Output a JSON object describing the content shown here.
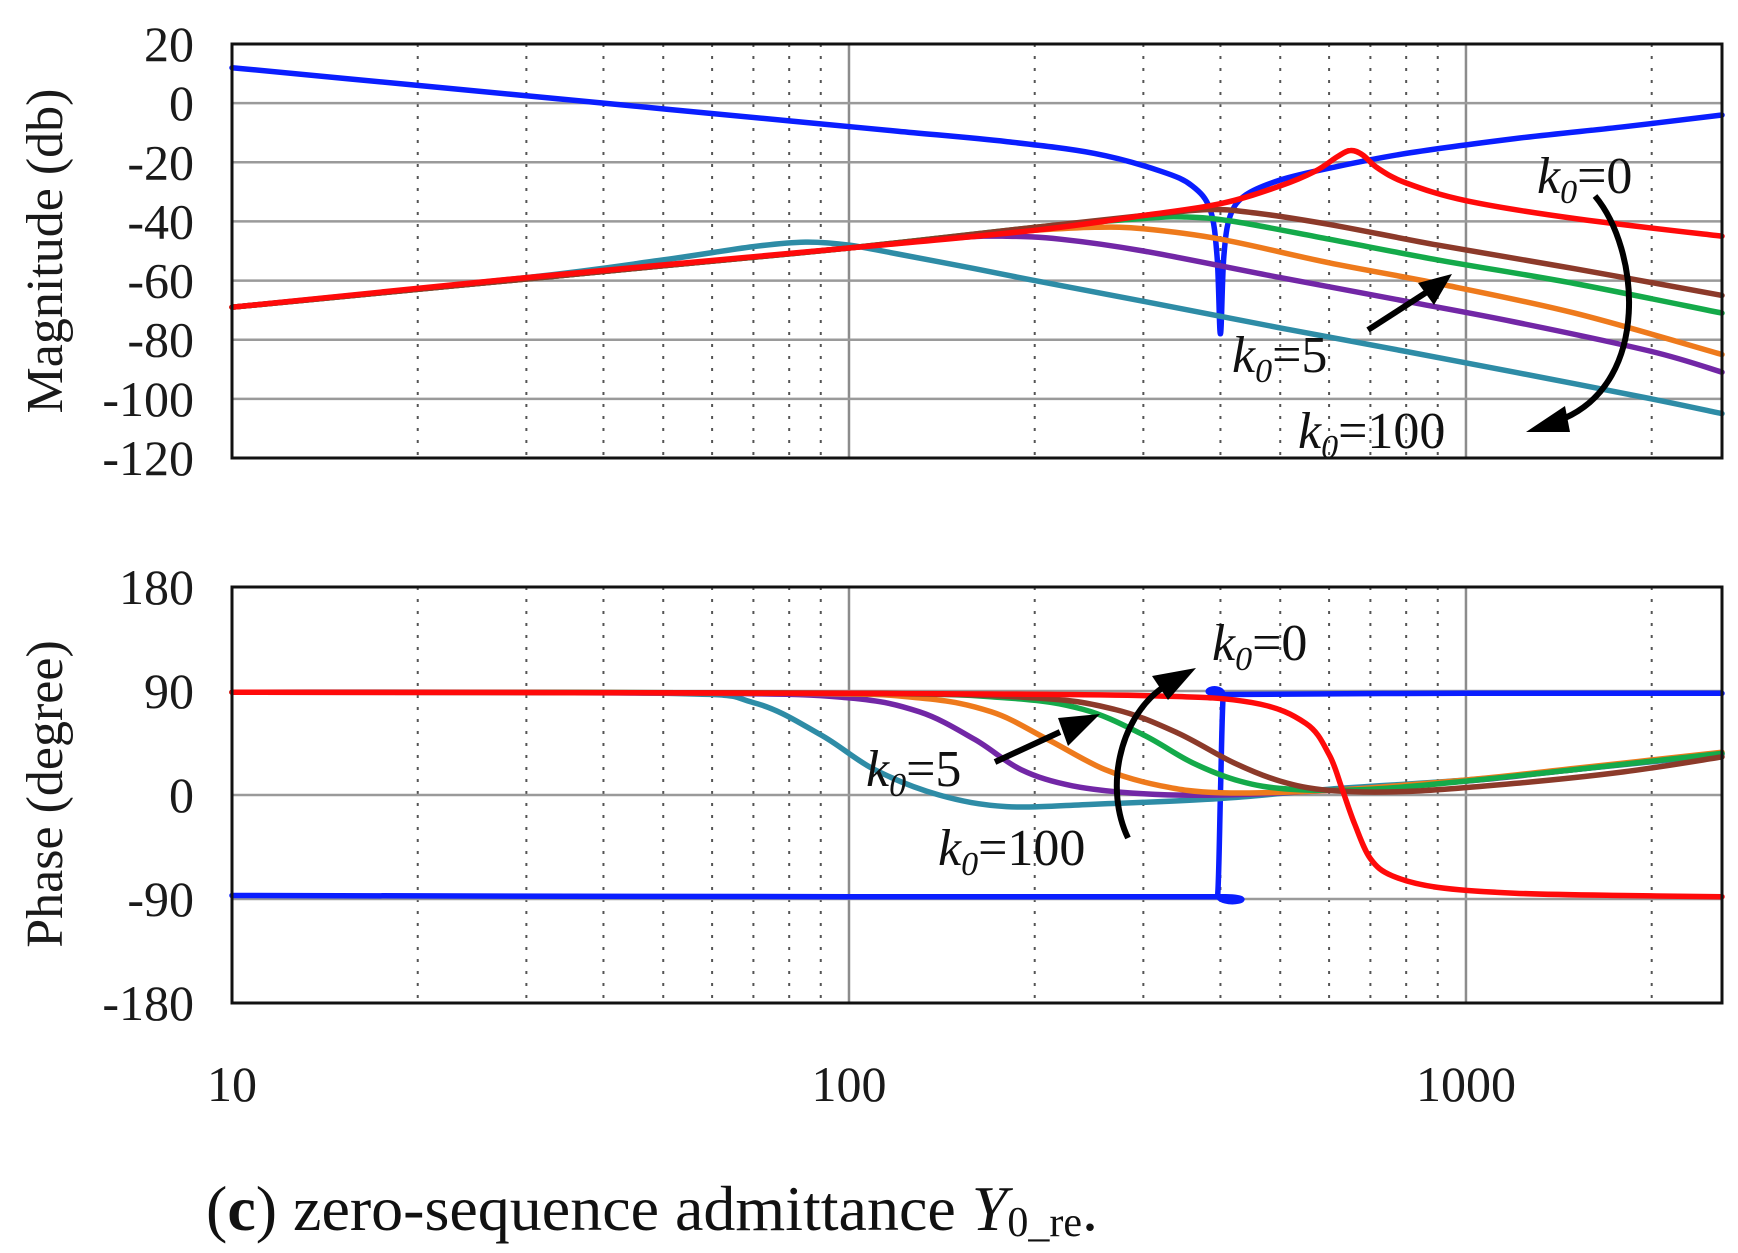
{
  "chart_data": [
    {
      "type": "line",
      "panel": "magnitude",
      "ylabel": "Magnitude (db)",
      "x_scale": "log",
      "xlim": [
        10,
        2600
      ],
      "ylim": [
        -120,
        20
      ],
      "yticks": [
        20,
        0,
        -20,
        -40,
        -60,
        -80,
        -100,
        -120
      ],
      "series": [
        {
          "name": "k0=0 (blue)",
          "color": "#0a1eff",
          "x": [
            10,
            20,
            40,
            80,
            120,
            180,
            250,
            320,
            360,
            385,
            395,
            400,
            405,
            415,
            440,
            500,
            600,
            800,
            1200,
            1800,
            2600
          ],
          "y": [
            12,
            6,
            0,
            -6,
            -9.5,
            -13,
            -17,
            -23,
            -28,
            -36,
            -52,
            -78,
            -52,
            -38,
            -31,
            -26,
            -22,
            -17,
            -12,
            -8,
            -4
          ]
        },
        {
          "name": "k0=100 (teal)",
          "color": "#2e8ca6",
          "x": [
            10,
            30,
            50,
            70,
            85,
            100,
            120,
            160,
            200,
            300,
            500,
            800,
            1200,
            2000,
            2600
          ],
          "y": [
            -69,
            -59,
            -53,
            -48.5,
            -47,
            -48,
            -51,
            -56,
            -60,
            -67,
            -76,
            -84,
            -91,
            -100,
            -105
          ]
        },
        {
          "name": "purple",
          "color": "#7227a6",
          "x": [
            10,
            50,
            100,
            150,
            180,
            220,
            300,
            500,
            800,
            1200,
            2000,
            2600
          ],
          "y": [
            -69,
            -55,
            -49,
            -45.5,
            -45,
            -46,
            -50,
            -59,
            -67,
            -74,
            -84,
            -91
          ]
        },
        {
          "name": "orange",
          "color": "#ee7a1c",
          "x": [
            10,
            50,
            100,
            150,
            200,
            250,
            300,
            400,
            600,
            900,
            1500,
            2600
          ],
          "y": [
            -69,
            -55,
            -49,
            -45,
            -43,
            -42,
            -42.5,
            -46,
            -54,
            -61,
            -71,
            -85
          ]
        },
        {
          "name": "green",
          "color": "#14aa4a",
          "x": [
            10,
            50,
            100,
            200,
            300,
            350,
            420,
            600,
            900,
            1500,
            2600
          ],
          "y": [
            -69,
            -55,
            -49,
            -42,
            -39,
            -38.5,
            -40,
            -46,
            -53,
            -61,
            -71
          ]
        },
        {
          "name": "brown",
          "color": "#8c3a2a",
          "x": [
            10,
            50,
            100,
            200,
            300,
            380,
            450,
            600,
            900,
            1500,
            2600
          ],
          "y": [
            -69,
            -55,
            -49,
            -42,
            -38,
            -36,
            -37,
            -41,
            -48,
            -56,
            -65
          ]
        },
        {
          "name": "k0=5 / red",
          "color": "#ff0a0a",
          "x": [
            10,
            30,
            100,
            200,
            300,
            400,
            500,
            570,
            620,
            650,
            680,
            720,
            800,
            1000,
            1500,
            2600
          ],
          "y": [
            -69,
            -59,
            -49,
            -43,
            -38,
            -34,
            -28,
            -23,
            -18,
            -16,
            -17.5,
            -22,
            -27,
            -33,
            -39,
            -45
          ]
        }
      ],
      "annotations": [
        {
          "k": "k",
          "sub": "0",
          "text": "=0"
        },
        {
          "k": "k",
          "sub": "0",
          "text": "=5"
        },
        {
          "k": "k",
          "sub": "0",
          "text": "=100"
        }
      ]
    },
    {
      "type": "line",
      "panel": "phase",
      "ylabel": "Phase (degree)",
      "x_scale": "log",
      "xlim": [
        10,
        2600
      ],
      "ylim": [
        -180,
        180
      ],
      "yticks": [
        180,
        90,
        0,
        -90,
        -180
      ],
      "xticks": [
        10,
        100,
        1000
      ],
      "series": [
        {
          "name": "k0=0 (blue)",
          "color": "#0a1eff",
          "x": [
            10,
            100,
            390,
            396,
            400,
            404,
            410,
            1000,
            2600
          ],
          "y": [
            -87,
            -88,
            -88,
            -85,
            0,
            85,
            87,
            88,
            88
          ]
        },
        {
          "name": "k0=100 (teal)",
          "color": "#2e8ca6",
          "x": [
            10,
            50,
            70,
            90,
            110,
            140,
            180,
            250,
            400,
            600,
            1000,
            1500,
            2600
          ],
          "y": [
            89,
            88,
            80,
            52,
            22,
            0,
            -10,
            -8,
            -3,
            5,
            13,
            22,
            35
          ]
        },
        {
          "name": "purple",
          "color": "#7227a6",
          "x": [
            10,
            60,
            100,
            130,
            160,
            190,
            230,
            300,
            400,
            600,
            1000,
            1500,
            2600
          ],
          "y": [
            89,
            88,
            84,
            72,
            48,
            22,
            8,
            1,
            0,
            4,
            12,
            22,
            36
          ]
        },
        {
          "name": "orange",
          "color": "#ee7a1c",
          "x": [
            10,
            80,
            130,
            170,
            210,
            260,
            320,
            400,
            600,
            1000,
            1500,
            2600
          ],
          "y": [
            89,
            88,
            84,
            72,
            48,
            22,
            8,
            2,
            4,
            13,
            23,
            37
          ]
        },
        {
          "name": "green",
          "color": "#14aa4a",
          "x": [
            10,
            100,
            180,
            240,
            300,
            360,
            430,
            520,
            700,
            1000,
            1500,
            2600
          ],
          "y": [
            89,
            88,
            84,
            74,
            52,
            28,
            12,
            5,
            5,
            12,
            22,
            36
          ]
        },
        {
          "name": "brown",
          "color": "#8c3a2a",
          "x": [
            10,
            100,
            200,
            270,
            340,
            420,
            500,
            600,
            800,
            1200,
            1800,
            2600
          ],
          "y": [
            89,
            88,
            84,
            74,
            54,
            28,
            12,
            4,
            3,
            10,
            20,
            33
          ]
        },
        {
          "name": "k0=5 / red",
          "color": "#ff0a0a",
          "x": [
            10,
            100,
            300,
            450,
            550,
            600,
            630,
            660,
            700,
            760,
            900,
            1200,
            1800,
            2600
          ],
          "y": [
            89,
            88,
            86,
            80,
            62,
            35,
            5,
            -25,
            -55,
            -70,
            -80,
            -85,
            -87,
            -88
          ]
        }
      ],
      "annotations": [
        {
          "k": "k",
          "sub": "0",
          "text": "=0"
        },
        {
          "k": "k",
          "sub": "0",
          "text": "=5"
        },
        {
          "k": "k",
          "sub": "0",
          "text": "=100"
        }
      ]
    }
  ],
  "caption": {
    "label": "c",
    "text": " zero-sequence admittance ",
    "symbol": "Y",
    "sub": "0_re",
    "end": "."
  }
}
